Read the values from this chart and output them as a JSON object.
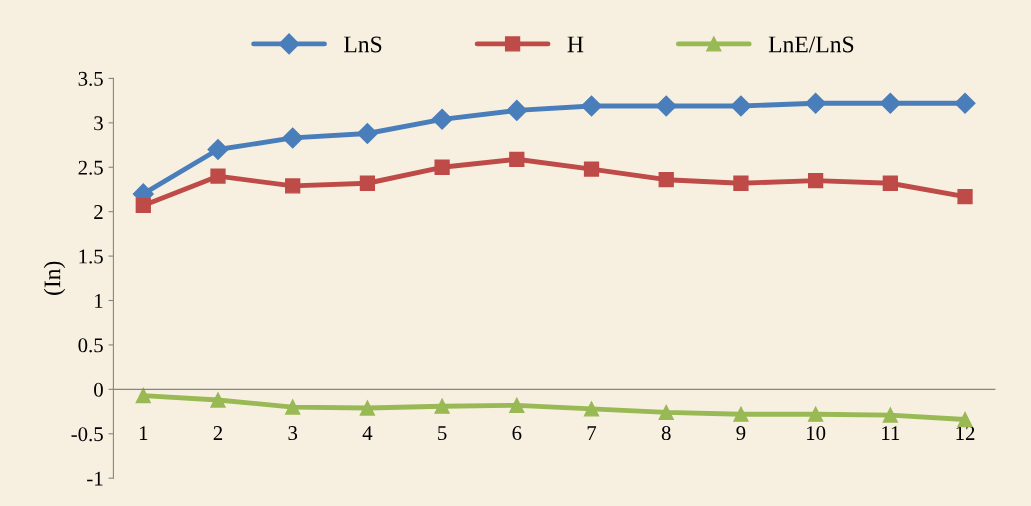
{
  "chart_data": {
    "type": "line",
    "ylabel": "(In)",
    "categories": [
      "1",
      "2",
      "3",
      "4",
      "5",
      "6",
      "7",
      "8",
      "9",
      "10",
      "11",
      "12"
    ],
    "series": [
      {
        "name": "LnS",
        "color": "#4a7ebb",
        "marker": "diamond",
        "values": [
          2.2,
          2.7,
          2.83,
          2.88,
          3.04,
          3.14,
          3.19,
          3.19,
          3.19,
          3.22,
          3.22,
          3.22
        ]
      },
      {
        "name": "H",
        "color": "#be4b48",
        "marker": "square",
        "values": [
          2.07,
          2.4,
          2.29,
          2.32,
          2.5,
          2.59,
          2.48,
          2.36,
          2.32,
          2.35,
          2.32,
          2.17
        ]
      },
      {
        "name": "LnE/LnS",
        "color": "#98b954",
        "marker": "triangle",
        "values": [
          -0.07,
          -0.12,
          -0.2,
          -0.21,
          -0.19,
          -0.18,
          -0.22,
          -0.26,
          -0.28,
          -0.28,
          -0.29,
          -0.34
        ]
      }
    ],
    "ylim": [
      -1,
      3.5
    ],
    "yticks": [
      -1,
      -0.5,
      0,
      0.5,
      1,
      1.5,
      2,
      2.5,
      3,
      3.5
    ],
    "grid": false,
    "legend": "top",
    "line_style": "solid"
  }
}
